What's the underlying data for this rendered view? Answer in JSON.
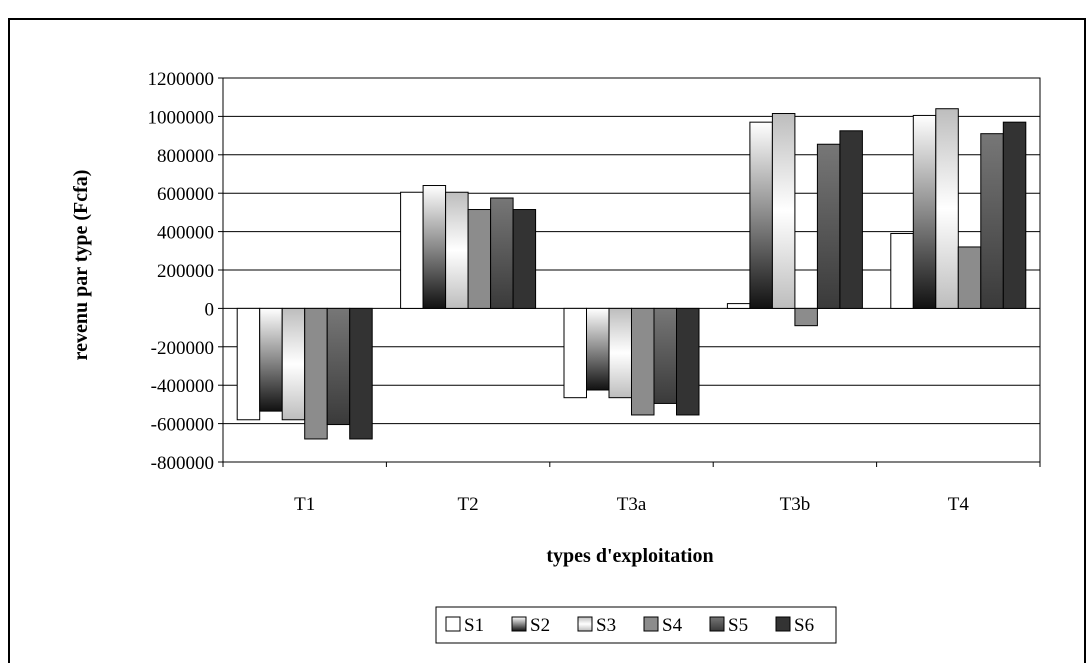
{
  "chart_data": {
    "type": "bar",
    "categories": [
      "T1",
      "T2",
      "T3a",
      "T3b",
      "T4"
    ],
    "xlabel": "types d'exploitation",
    "ylabel": "revenu par type (Fcfa)",
    "ylim": [
      -800000,
      1200000
    ],
    "yticks": [
      1200000,
      1000000,
      800000,
      600000,
      400000,
      200000,
      0,
      -200000,
      -400000,
      -600000,
      -800000
    ],
    "ytick_labels": [
      "1200000",
      "1000000",
      "800000",
      "600000",
      "400000",
      "200000",
      "0",
      "-200000",
      "-400000",
      "-600000",
      "-800000"
    ],
    "grid": true,
    "legend_position": "bottom",
    "series": [
      {
        "name": "S1",
        "values": [
          -580000,
          605000,
          -465000,
          25000,
          390000
        ]
      },
      {
        "name": "S2",
        "values": [
          -535000,
          640000,
          -425000,
          970000,
          1005000
        ]
      },
      {
        "name": "S3",
        "values": [
          -580000,
          605000,
          -465000,
          1015000,
          1040000
        ]
      },
      {
        "name": "S4",
        "values": [
          -680000,
          515000,
          -555000,
          -90000,
          320000
        ]
      },
      {
        "name": "S5",
        "values": [
          -605000,
          575000,
          -495000,
          855000,
          910000
        ]
      },
      {
        "name": "S6",
        "values": [
          -680000,
          515000,
          -555000,
          925000,
          970000
        ]
      }
    ],
    "series_styles": [
      {
        "fill": "#ffffff",
        "gradient": false
      },
      {
        "fill": "#888888",
        "gradient": true
      },
      {
        "fill": "#eeeeee",
        "gradient": "light"
      },
      {
        "fill": "#888888",
        "gradient": false
      },
      {
        "fill": "#555555",
        "gradient": "dark"
      },
      {
        "fill": "#333333",
        "gradient": false
      }
    ]
  }
}
